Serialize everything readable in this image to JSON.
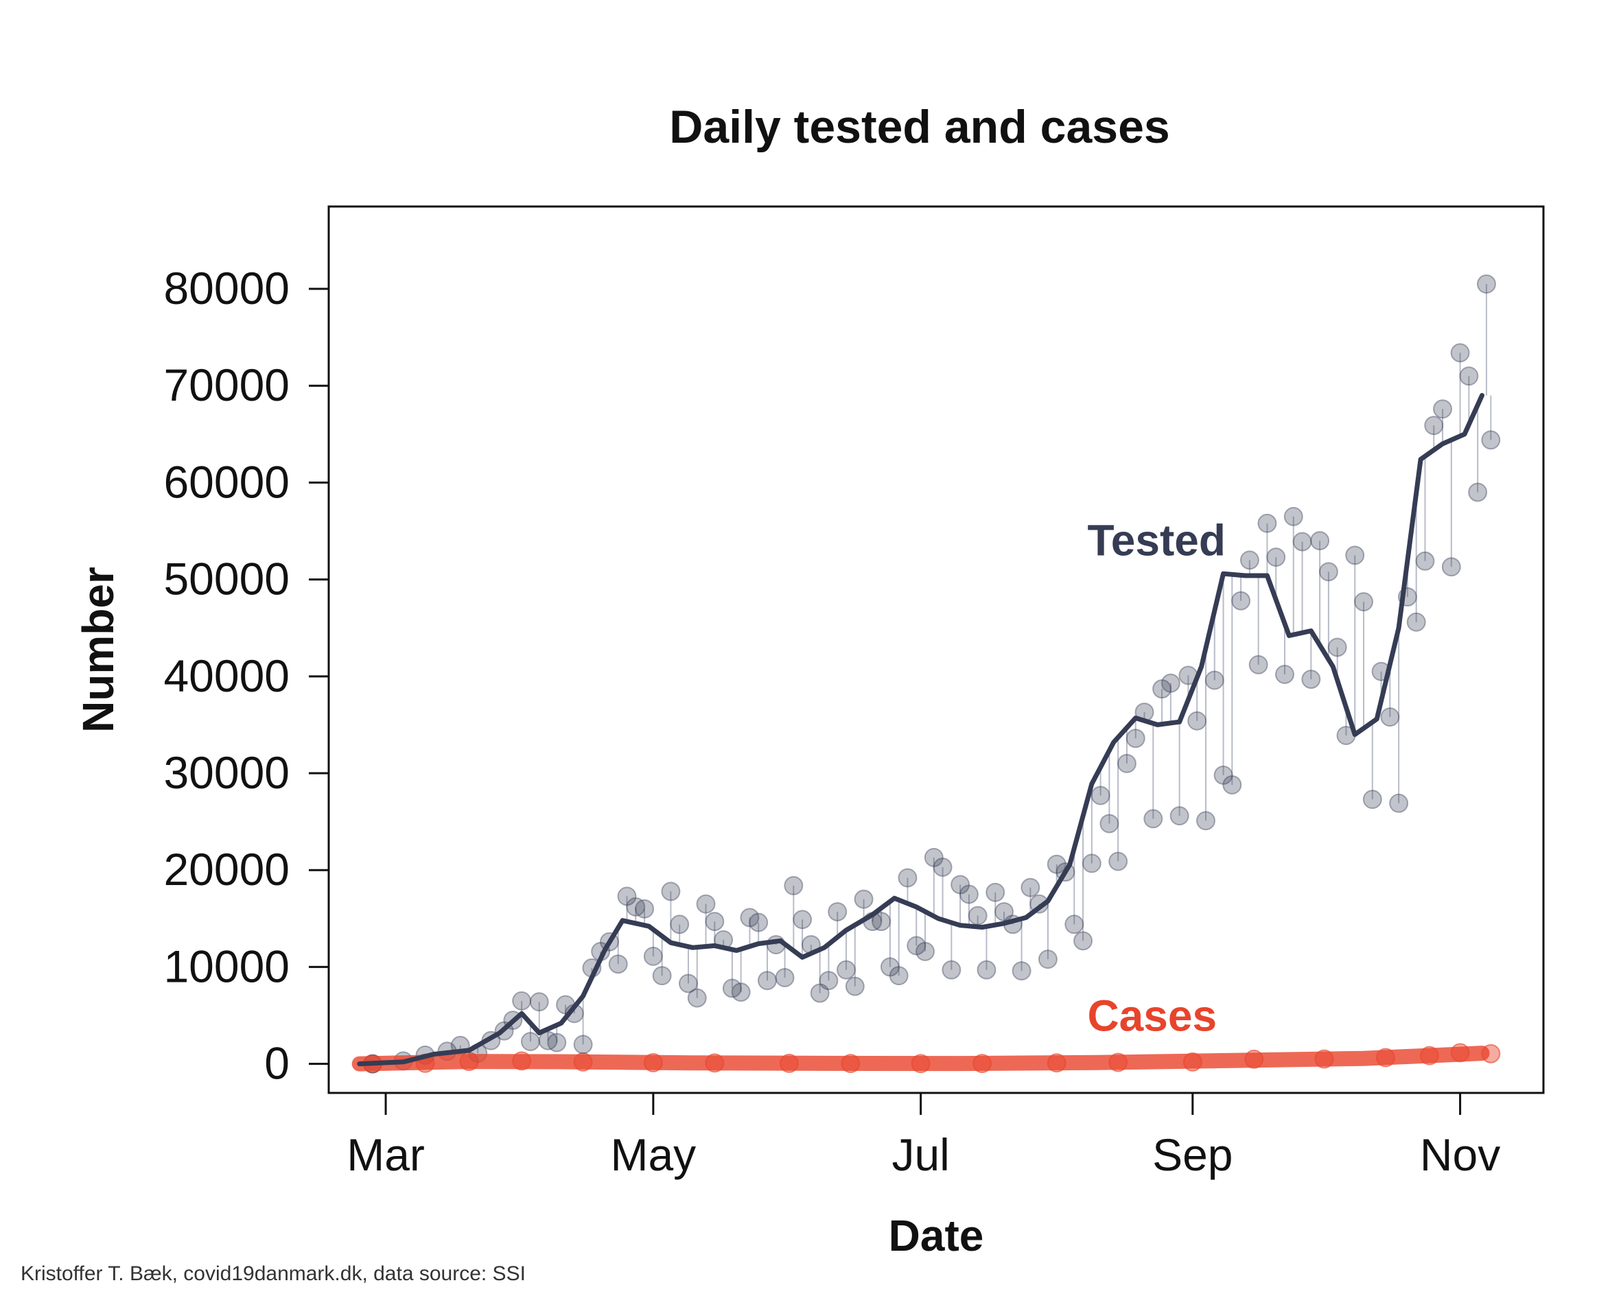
{
  "chart_data": {
    "type": "scatter",
    "title": "Daily tested and cases",
    "xlabel": "Date",
    "ylabel": "Number",
    "caption": "Kristoffer T. Bæk, covid19danmark.dk, data source: SSI",
    "xlim": [
      "2020-02-17",
      "2020-11-20"
    ],
    "ylim": [
      -3000,
      88500
    ],
    "x_ticks": [
      {
        "date": "2020-03-01",
        "label": "Mar"
      },
      {
        "date": "2020-05-01",
        "label": "May"
      },
      {
        "date": "2020-07-01",
        "label": "Jul"
      },
      {
        "date": "2020-09-01",
        "label": "Sep"
      },
      {
        "date": "2020-11-01",
        "label": "Nov"
      }
    ],
    "y_ticks": [
      0,
      10000,
      20000,
      30000,
      40000,
      50000,
      60000,
      70000,
      80000
    ],
    "y_tick_labels": [
      "0",
      "10000",
      "20000",
      "30000",
      "40000",
      "50000",
      "60000",
      "70000",
      "80000"
    ],
    "grid": false,
    "colors": {
      "tested": "#353c54",
      "cases": "#e8442c",
      "spikes": "#b8bcc8"
    },
    "series": [
      {
        "name": "Tested",
        "style": "points with smoothed line",
        "points": [
          [
            "2020-02-27",
            0
          ],
          [
            "2020-03-05",
            300
          ],
          [
            "2020-03-10",
            900
          ],
          [
            "2020-03-15",
            1300
          ],
          [
            "2020-03-18",
            1900
          ],
          [
            "2020-03-22",
            1100
          ],
          [
            "2020-03-25",
            2400
          ],
          [
            "2020-03-28",
            3400
          ],
          [
            "2020-03-30",
            4500
          ],
          [
            "2020-04-01",
            6500
          ],
          [
            "2020-04-03",
            2300
          ],
          [
            "2020-04-05",
            6400
          ],
          [
            "2020-04-07",
            2400
          ],
          [
            "2020-04-09",
            2200
          ],
          [
            "2020-04-11",
            6100
          ],
          [
            "2020-04-13",
            5200
          ],
          [
            "2020-04-15",
            2000
          ],
          [
            "2020-04-17",
            9900
          ],
          [
            "2020-04-19",
            11600
          ],
          [
            "2020-04-21",
            12600
          ],
          [
            "2020-04-23",
            10300
          ],
          [
            "2020-04-25",
            17300
          ],
          [
            "2020-04-27",
            16200
          ],
          [
            "2020-04-29",
            16000
          ],
          [
            "2020-05-01",
            11100
          ],
          [
            "2020-05-03",
            9100
          ],
          [
            "2020-05-05",
            17800
          ],
          [
            "2020-05-07",
            14400
          ],
          [
            "2020-05-09",
            8300
          ],
          [
            "2020-05-11",
            6800
          ],
          [
            "2020-05-13",
            16500
          ],
          [
            "2020-05-15",
            14700
          ],
          [
            "2020-05-17",
            12800
          ],
          [
            "2020-05-19",
            7800
          ],
          [
            "2020-05-21",
            7400
          ],
          [
            "2020-05-23",
            15100
          ],
          [
            "2020-05-25",
            14600
          ],
          [
            "2020-05-27",
            8600
          ],
          [
            "2020-05-29",
            12300
          ],
          [
            "2020-05-31",
            8900
          ],
          [
            "2020-06-02",
            18400
          ],
          [
            "2020-06-04",
            14900
          ],
          [
            "2020-06-06",
            12300
          ],
          [
            "2020-06-08",
            7300
          ],
          [
            "2020-06-10",
            8600
          ],
          [
            "2020-06-12",
            15700
          ],
          [
            "2020-06-14",
            9700
          ],
          [
            "2020-06-16",
            8000
          ],
          [
            "2020-06-18",
            17000
          ],
          [
            "2020-06-20",
            14700
          ],
          [
            "2020-06-22",
            14700
          ],
          [
            "2020-06-24",
            10000
          ],
          [
            "2020-06-26",
            9100
          ],
          [
            "2020-06-28",
            19200
          ],
          [
            "2020-06-30",
            12200
          ],
          [
            "2020-07-02",
            11600
          ],
          [
            "2020-07-04",
            21300
          ],
          [
            "2020-07-06",
            20300
          ],
          [
            "2020-07-08",
            9700
          ],
          [
            "2020-07-10",
            18500
          ],
          [
            "2020-07-12",
            17500
          ],
          [
            "2020-07-14",
            15300
          ],
          [
            "2020-07-16",
            9700
          ],
          [
            "2020-07-18",
            17700
          ],
          [
            "2020-07-20",
            15700
          ],
          [
            "2020-07-22",
            14400
          ],
          [
            "2020-07-24",
            9600
          ],
          [
            "2020-07-26",
            18200
          ],
          [
            "2020-07-28",
            16500
          ],
          [
            "2020-07-30",
            10800
          ],
          [
            "2020-08-01",
            20600
          ],
          [
            "2020-08-03",
            19800
          ],
          [
            "2020-08-05",
            14400
          ],
          [
            "2020-08-07",
            12700
          ],
          [
            "2020-08-09",
            20700
          ],
          [
            "2020-08-11",
            27700
          ],
          [
            "2020-08-13",
            24800
          ],
          [
            "2020-08-15",
            20900
          ],
          [
            "2020-08-17",
            31000
          ],
          [
            "2020-08-19",
            33600
          ],
          [
            "2020-08-21",
            36300
          ],
          [
            "2020-08-23",
            25300
          ],
          [
            "2020-08-25",
            38700
          ],
          [
            "2020-08-27",
            39300
          ],
          [
            "2020-08-29",
            25600
          ],
          [
            "2020-08-31",
            40100
          ],
          [
            "2020-09-02",
            35400
          ],
          [
            "2020-09-04",
            25100
          ],
          [
            "2020-09-06",
            39600
          ],
          [
            "2020-09-08",
            29800
          ],
          [
            "2020-09-10",
            28800
          ],
          [
            "2020-09-12",
            47800
          ],
          [
            "2020-09-14",
            52000
          ],
          [
            "2020-09-16",
            41200
          ],
          [
            "2020-09-18",
            55800
          ],
          [
            "2020-09-20",
            52300
          ],
          [
            "2020-09-22",
            40200
          ],
          [
            "2020-09-24",
            56500
          ],
          [
            "2020-09-26",
            53900
          ],
          [
            "2020-09-28",
            39700
          ],
          [
            "2020-09-30",
            54000
          ],
          [
            "2020-10-02",
            50800
          ],
          [
            "2020-10-04",
            43000
          ],
          [
            "2020-10-06",
            33900
          ],
          [
            "2020-10-08",
            52500
          ],
          [
            "2020-10-10",
            47700
          ],
          [
            "2020-10-12",
            27300
          ],
          [
            "2020-10-14",
            40500
          ],
          [
            "2020-10-16",
            35800
          ],
          [
            "2020-10-18",
            26900
          ],
          [
            "2020-10-20",
            48200
          ],
          [
            "2020-10-22",
            45600
          ],
          [
            "2020-10-24",
            51900
          ],
          [
            "2020-10-26",
            65900
          ],
          [
            "2020-10-28",
            67600
          ],
          [
            "2020-10-30",
            51300
          ],
          [
            "2020-11-01",
            73400
          ],
          [
            "2020-11-03",
            71000
          ],
          [
            "2020-11-05",
            59000
          ],
          [
            "2020-11-07",
            80500
          ],
          [
            "2020-11-08",
            64400
          ]
        ],
        "smoothed": [
          [
            "2020-02-24",
            0
          ],
          [
            "2020-03-05",
            200
          ],
          [
            "2020-03-12",
            1000
          ],
          [
            "2020-03-20",
            1400
          ],
          [
            "2020-03-27",
            3200
          ],
          [
            "2020-04-01",
            5200
          ],
          [
            "2020-04-05",
            3200
          ],
          [
            "2020-04-10",
            4200
          ],
          [
            "2020-04-15",
            7000
          ],
          [
            "2020-04-20",
            11800
          ],
          [
            "2020-04-24",
            14800
          ],
          [
            "2020-04-30",
            14200
          ],
          [
            "2020-05-05",
            12500
          ],
          [
            "2020-05-10",
            12000
          ],
          [
            "2020-05-15",
            12200
          ],
          [
            "2020-05-20",
            11700
          ],
          [
            "2020-05-25",
            12400
          ],
          [
            "2020-05-30",
            12700
          ],
          [
            "2020-06-04",
            11000
          ],
          [
            "2020-06-09",
            12000
          ],
          [
            "2020-06-14",
            13800
          ],
          [
            "2020-06-20",
            15400
          ],
          [
            "2020-06-25",
            17100
          ],
          [
            "2020-06-30",
            16200
          ],
          [
            "2020-07-05",
            15000
          ],
          [
            "2020-07-10",
            14300
          ],
          [
            "2020-07-15",
            14100
          ],
          [
            "2020-07-20",
            14500
          ],
          [
            "2020-07-25",
            15100
          ],
          [
            "2020-07-30",
            16800
          ],
          [
            "2020-08-04",
            20600
          ],
          [
            "2020-08-09",
            28900
          ],
          [
            "2020-08-14",
            33200
          ],
          [
            "2020-08-19",
            35700
          ],
          [
            "2020-08-24",
            35000
          ],
          [
            "2020-08-29",
            35300
          ],
          [
            "2020-09-03",
            41000
          ],
          [
            "2020-09-08",
            50600
          ],
          [
            "2020-09-13",
            50400
          ],
          [
            "2020-09-18",
            50400
          ],
          [
            "2020-09-23",
            44200
          ],
          [
            "2020-09-28",
            44700
          ],
          [
            "2020-10-03",
            41000
          ],
          [
            "2020-10-08",
            34000
          ],
          [
            "2020-10-13",
            35600
          ],
          [
            "2020-10-18",
            45000
          ],
          [
            "2020-10-23",
            62400
          ],
          [
            "2020-10-28",
            64000
          ],
          [
            "2020-11-02",
            65000
          ],
          [
            "2020-11-06",
            69000
          ]
        ]
      },
      {
        "name": "Cases",
        "style": "points with smoothed line",
        "points": [
          [
            "2020-02-27",
            0
          ],
          [
            "2020-03-10",
            60
          ],
          [
            "2020-03-20",
            250
          ],
          [
            "2020-04-01",
            300
          ],
          [
            "2020-04-15",
            200
          ],
          [
            "2020-05-01",
            120
          ],
          [
            "2020-05-15",
            90
          ],
          [
            "2020-06-01",
            50
          ],
          [
            "2020-06-15",
            40
          ],
          [
            "2020-07-01",
            30
          ],
          [
            "2020-07-15",
            40
          ],
          [
            "2020-08-01",
            100
          ],
          [
            "2020-08-15",
            150
          ],
          [
            "2020-09-01",
            200
          ],
          [
            "2020-09-15",
            480
          ],
          [
            "2020-10-01",
            500
          ],
          [
            "2020-10-15",
            650
          ],
          [
            "2020-10-25",
            850
          ],
          [
            "2020-11-01",
            1150
          ],
          [
            "2020-11-08",
            1050
          ]
        ],
        "smoothed": [
          [
            "2020-02-24",
            0
          ],
          [
            "2020-03-20",
            250
          ],
          [
            "2020-04-10",
            220
          ],
          [
            "2020-05-10",
            100
          ],
          [
            "2020-06-10",
            50
          ],
          [
            "2020-07-10",
            40
          ],
          [
            "2020-08-10",
            130
          ],
          [
            "2020-09-10",
            350
          ],
          [
            "2020-10-10",
            560
          ],
          [
            "2020-10-25",
            850
          ],
          [
            "2020-11-06",
            1100
          ]
        ]
      }
    ],
    "annotations": [
      {
        "text": "Tested",
        "x": "2020-08-08",
        "y": 52500
      },
      {
        "text": "Cases",
        "x": "2020-08-08",
        "y": 3400
      }
    ]
  }
}
